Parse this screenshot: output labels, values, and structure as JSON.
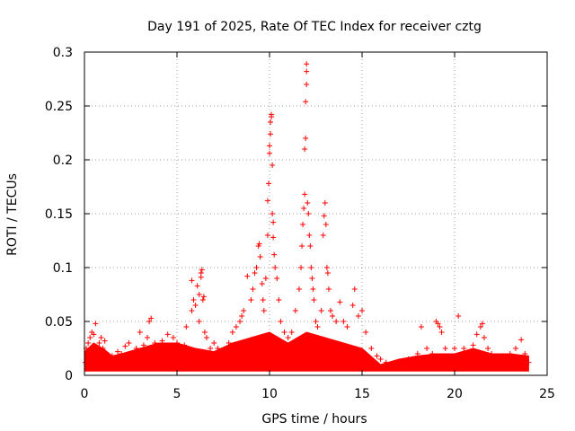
{
  "chart_data": {
    "type": "scatter",
    "title": "Day 191 of 2025, Rate Of TEC Index for receiver cztg",
    "xlabel": "GPS time / hours",
    "ylabel": "ROTI / TECUs",
    "xlim": [
      0,
      25
    ],
    "ylim": [
      0,
      0.3
    ],
    "grid": true,
    "marker": "+",
    "color": "#ff0000",
    "x_ticks": [
      {
        "value": 0,
        "label": "0"
      },
      {
        "value": 5,
        "label": "5"
      },
      {
        "value": 10,
        "label": "10"
      },
      {
        "value": 15,
        "label": "15"
      },
      {
        "value": 20,
        "label": "20"
      },
      {
        "value": 25,
        "label": "25"
      }
    ],
    "y_ticks": [
      {
        "value": 0,
        "label": "0"
      },
      {
        "value": 0.05,
        "label": "0.05"
      },
      {
        "value": 0.1,
        "label": "0.1"
      },
      {
        "value": 0.15,
        "label": "0.15"
      },
      {
        "value": 0.2,
        "label": "0.2"
      },
      {
        "value": 0.25,
        "label": "0.25"
      },
      {
        "value": 0.3,
        "label": "0.3"
      }
    ],
    "series": [
      {
        "name": "ROTI",
        "points": [
          [
            0.05,
            0.012
          ],
          [
            0.1,
            0.025
          ],
          [
            0.2,
            0.03
          ],
          [
            0.3,
            0.035
          ],
          [
            0.4,
            0.04
          ],
          [
            0.5,
            0.038
          ],
          [
            0.6,
            0.048
          ],
          [
            0.7,
            0.02
          ],
          [
            0.8,
            0.03
          ],
          [
            0.9,
            0.035
          ],
          [
            1.0,
            0.025
          ],
          [
            1.1,
            0.032
          ],
          [
            1.2,
            0.015
          ],
          [
            1.5,
            0.018
          ],
          [
            1.8,
            0.022
          ],
          [
            2.0,
            0.02
          ],
          [
            2.2,
            0.027
          ],
          [
            2.4,
            0.03
          ],
          [
            2.6,
            0.018
          ],
          [
            2.8,
            0.025
          ],
          [
            3.0,
            0.04
          ],
          [
            3.2,
            0.028
          ],
          [
            3.4,
            0.035
          ],
          [
            3.5,
            0.05
          ],
          [
            3.6,
            0.053
          ],
          [
            3.8,
            0.03
          ],
          [
            4.0,
            0.025
          ],
          [
            4.2,
            0.032
          ],
          [
            4.5,
            0.038
          ],
          [
            4.8,
            0.035
          ],
          [
            5.0,
            0.03
          ],
          [
            5.2,
            0.022
          ],
          [
            5.4,
            0.028
          ],
          [
            5.5,
            0.045
          ],
          [
            5.6,
            0.025
          ],
          [
            5.8,
            0.06
          ],
          [
            5.8,
            0.088
          ],
          [
            5.9,
            0.07
          ],
          [
            6.0,
            0.065
          ],
          [
            6.1,
            0.083
          ],
          [
            6.2,
            0.075
          ],
          [
            6.2,
            0.05
          ],
          [
            6.3,
            0.095
          ],
          [
            6.3,
            0.091
          ],
          [
            6.35,
            0.098
          ],
          [
            6.4,
            0.07
          ],
          [
            6.45,
            0.073
          ],
          [
            6.5,
            0.04
          ],
          [
            6.6,
            0.035
          ],
          [
            6.8,
            0.025
          ],
          [
            7.0,
            0.03
          ],
          [
            7.2,
            0.025
          ],
          [
            7.5,
            0.02
          ],
          [
            7.8,
            0.03
          ],
          [
            8.0,
            0.04
          ],
          [
            8.2,
            0.045
          ],
          [
            8.4,
            0.05
          ],
          [
            8.5,
            0.055
          ],
          [
            8.6,
            0.06
          ],
          [
            8.8,
            0.092
          ],
          [
            9.0,
            0.07
          ],
          [
            9.1,
            0.08
          ],
          [
            9.2,
            0.095
          ],
          [
            9.3,
            0.1
          ],
          [
            9.4,
            0.12
          ],
          [
            9.45,
            0.122
          ],
          [
            9.5,
            0.11
          ],
          [
            9.6,
            0.085
          ],
          [
            9.65,
            0.07
          ],
          [
            9.7,
            0.06
          ],
          [
            9.8,
            0.09
          ],
          [
            9.9,
            0.13
          ],
          [
            9.9,
            0.162
          ],
          [
            9.95,
            0.178
          ],
          [
            10.0,
            0.206
          ],
          [
            10.0,
            0.213
          ],
          [
            10.05,
            0.224
          ],
          [
            10.05,
            0.235
          ],
          [
            10.1,
            0.24
          ],
          [
            10.1,
            0.242
          ],
          [
            10.15,
            0.195
          ],
          [
            10.15,
            0.15
          ],
          [
            10.2,
            0.142
          ],
          [
            10.2,
            0.128
          ],
          [
            10.25,
            0.112
          ],
          [
            10.3,
            0.1
          ],
          [
            10.4,
            0.09
          ],
          [
            10.5,
            0.07
          ],
          [
            10.6,
            0.05
          ],
          [
            10.8,
            0.04
          ],
          [
            11.0,
            0.035
          ],
          [
            11.2,
            0.04
          ],
          [
            11.4,
            0.06
          ],
          [
            11.6,
            0.08
          ],
          [
            11.7,
            0.1
          ],
          [
            11.75,
            0.12
          ],
          [
            11.8,
            0.14
          ],
          [
            11.85,
            0.155
          ],
          [
            11.9,
            0.168
          ],
          [
            11.9,
            0.21
          ],
          [
            11.95,
            0.22
          ],
          [
            11.95,
            0.254
          ],
          [
            12.0,
            0.27
          ],
          [
            12.0,
            0.282
          ],
          [
            12.0,
            0.289
          ],
          [
            12.05,
            0.16
          ],
          [
            12.1,
            0.15
          ],
          [
            12.15,
            0.13
          ],
          [
            12.2,
            0.12
          ],
          [
            12.25,
            0.1
          ],
          [
            12.3,
            0.09
          ],
          [
            12.35,
            0.08
          ],
          [
            12.4,
            0.07
          ],
          [
            12.5,
            0.05
          ],
          [
            12.6,
            0.045
          ],
          [
            12.8,
            0.06
          ],
          [
            12.9,
            0.13
          ],
          [
            12.95,
            0.148
          ],
          [
            13.0,
            0.16
          ],
          [
            13.05,
            0.14
          ],
          [
            13.1,
            0.1
          ],
          [
            13.15,
            0.095
          ],
          [
            13.2,
            0.08
          ],
          [
            13.3,
            0.06
          ],
          [
            13.4,
            0.055
          ],
          [
            13.6,
            0.05
          ],
          [
            13.8,
            0.068
          ],
          [
            14.0,
            0.05
          ],
          [
            14.2,
            0.045
          ],
          [
            14.5,
            0.065
          ],
          [
            14.6,
            0.08
          ],
          [
            14.8,
            0.055
          ],
          [
            15.0,
            0.06
          ],
          [
            15.2,
            0.04
          ],
          [
            15.5,
            0.025
          ],
          [
            15.8,
            0.018
          ],
          [
            16.0,
            0.015
          ],
          [
            16.3,
            0.012
          ],
          [
            16.6,
            0.01
          ],
          [
            17.0,
            0.012
          ],
          [
            17.5,
            0.015
          ],
          [
            18.0,
            0.02
          ],
          [
            18.2,
            0.045
          ],
          [
            18.5,
            0.025
          ],
          [
            18.8,
            0.02
          ],
          [
            19.0,
            0.05
          ],
          [
            19.1,
            0.048
          ],
          [
            19.2,
            0.045
          ],
          [
            19.3,
            0.04
          ],
          [
            19.5,
            0.025
          ],
          [
            19.8,
            0.018
          ],
          [
            20.0,
            0.025
          ],
          [
            20.2,
            0.055
          ],
          [
            20.5,
            0.025
          ],
          [
            20.8,
            0.02
          ],
          [
            21.0,
            0.028
          ],
          [
            21.2,
            0.038
          ],
          [
            21.4,
            0.045
          ],
          [
            21.5,
            0.048
          ],
          [
            21.6,
            0.035
          ],
          [
            21.8,
            0.025
          ],
          [
            22.0,
            0.02
          ],
          [
            22.3,
            0.015
          ],
          [
            22.6,
            0.018
          ],
          [
            23.0,
            0.02
          ],
          [
            23.3,
            0.025
          ],
          [
            23.6,
            0.033
          ],
          [
            23.8,
            0.02
          ],
          [
            24.0,
            0.012
          ]
        ]
      }
    ]
  }
}
